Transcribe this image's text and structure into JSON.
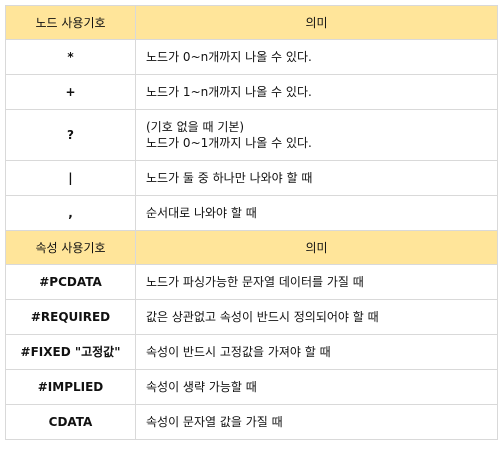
{
  "node_table": {
    "header": {
      "symbol": "노드 사용기호",
      "meaning": "의미"
    },
    "rows": [
      {
        "symbol": "*",
        "meaning": [
          "노드가 0~n개까지 나올 수 있다."
        ]
      },
      {
        "symbol": "+",
        "meaning": [
          "노드가 1~n개까지 나올 수 있다."
        ]
      },
      {
        "symbol": "?",
        "meaning": [
          "(기호 없을 때 기본)",
          "노드가 0~1개까지 나올 수 있다."
        ]
      },
      {
        "symbol": "|",
        "meaning": [
          "노드가 둘 중 하나만 나와야 할 때"
        ]
      },
      {
        "symbol": ",",
        "meaning": [
          "순서대로 나와야 할 때"
        ]
      }
    ]
  },
  "attr_table": {
    "header": {
      "symbol": "속성 사용기호",
      "meaning": "의미"
    },
    "rows": [
      {
        "symbol": "#PCDATA",
        "meaning": [
          "노드가 파싱가능한 문자열 데이터를 가질 때"
        ]
      },
      {
        "symbol": "#REQUIRED",
        "meaning": [
          "값은 상관없고 속성이 반드시 정의되어야 할 때"
        ]
      },
      {
        "symbol": "#FIXED \"고정값\"",
        "meaning": [
          "속성이 반드시 고정값을 가져야 할 때"
        ]
      },
      {
        "symbol": "#IMPLIED",
        "meaning": [
          "속성이 생략 가능할 때"
        ]
      },
      {
        "symbol": "CDATA",
        "meaning": [
          "속성이 문자열 값을 가질 때"
        ]
      }
    ]
  }
}
